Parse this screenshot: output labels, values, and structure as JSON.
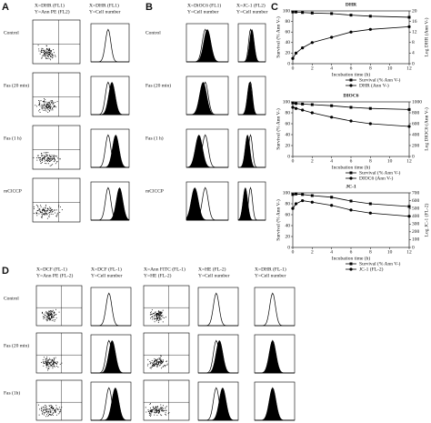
{
  "figure": {
    "A": {
      "label": "A",
      "headers": [
        [
          "X=DHR (FL1)",
          "Y=Ann PE (FL2)"
        ],
        [
          "X=DHR (FL1)",
          "Y=Cell number"
        ]
      ],
      "rows": [
        "Control",
        "Fas (20 min)",
        "Fas (1 h)",
        "mClCCP"
      ]
    },
    "B": {
      "label": "B",
      "headers": [
        [
          "X=DiOC6 (FL1)",
          "Y=Cell number"
        ],
        [
          "X=JC-1 (FL2)",
          "Y=Cell number"
        ]
      ],
      "rows": [
        "Control",
        "Fas (20 min)",
        "Fas (1 h)",
        "mClCCP"
      ]
    },
    "C": {
      "label": "C"
    },
    "D": {
      "label": "D",
      "headers": [
        [
          "X=DCF (FL-1)",
          "Y=Ann PE (FL-2)"
        ],
        [
          "X=DCF (FL-1)",
          "Y=Cell number"
        ],
        [
          "X=Ann FITC (FL-1)",
          "Y=HE (FL-2)"
        ],
        [
          "X=HE (FL-2)",
          "Y=Cell number"
        ],
        [
          "X=DHR (FL-1)",
          "Y=Cell number"
        ]
      ],
      "rows": [
        "Control",
        "Fas (20 min)",
        "Fas (1h)"
      ]
    }
  },
  "chart_data": [
    {
      "type": "line",
      "title": "DHR",
      "xlabel": "Incubation time (h)",
      "ylabel": "Survival (% Ann V-)",
      "y2label": "Log DHR (Ann V-)",
      "x": [
        0,
        0.33,
        1,
        2,
        4,
        6,
        8,
        12
      ],
      "xlim": [
        0,
        12
      ],
      "xticks": [
        0,
        2,
        4,
        6,
        8,
        10,
        12
      ],
      "ylim": [
        0,
        100
      ],
      "yticks": [
        0,
        20,
        40,
        60,
        80,
        100
      ],
      "y2lim": [
        0,
        20
      ],
      "y2ticks": [
        0,
        4,
        8,
        12,
        16,
        20
      ],
      "series": [
        {
          "name": "Survival (% Ann V-)",
          "color": "#000000",
          "values": [
            98,
            98,
            97,
            96,
            95,
            92,
            90,
            88
          ]
        },
        {
          "name": "DHR (Ann V-)",
          "color": "#000000",
          "values": [
            2,
            4,
            6,
            8,
            10,
            12,
            13,
            14
          ],
          "axis": "y2"
        }
      ]
    },
    {
      "type": "line",
      "title": "DIOC6",
      "xlabel": "Incubation time (h)",
      "ylabel": "Survival (% Ann V-)",
      "y2label": "Log DIOC6 (Ann V-)",
      "x": [
        0,
        0.33,
        1,
        2,
        4,
        6,
        8,
        12
      ],
      "xlim": [
        0,
        12
      ],
      "xticks": [
        0,
        2,
        4,
        6,
        8,
        10,
        12
      ],
      "ylim": [
        0,
        100
      ],
      "yticks": [
        0,
        20,
        40,
        60,
        80,
        100
      ],
      "y2lim": [
        0,
        1000
      ],
      "y2ticks": [
        0,
        200,
        400,
        600,
        800,
        1000
      ],
      "series": [
        {
          "name": "Survival (% Ann V-)",
          "color": "#000000",
          "values": [
            98,
            97,
            96,
            95,
            93,
            90,
            88,
            86
          ]
        },
        {
          "name": "DIOC6 (Ann V-)",
          "color": "#000000",
          "values": [
            900,
            880,
            850,
            800,
            720,
            650,
            600,
            550
          ],
          "axis": "y2"
        }
      ]
    },
    {
      "type": "line",
      "title": "JC-1",
      "xlabel": "Incubation time (h)",
      "ylabel": "Survival (% Ann V-)",
      "y2label": "Log JC-1 (FL-2)",
      "x": [
        0,
        0.33,
        1,
        2,
        4,
        6,
        8,
        12
      ],
      "xlim": [
        0,
        12
      ],
      "xticks": [
        0,
        2,
        4,
        6,
        8,
        10,
        12
      ],
      "ylim": [
        0,
        100
      ],
      "yticks": [
        0,
        20,
        40,
        60,
        80,
        100
      ],
      "y2lim": [
        0,
        700
      ],
      "y2ticks": [
        0,
        100,
        200,
        300,
        400,
        500,
        600,
        700
      ],
      "series": [
        {
          "name": "Survival (% Ann V-)",
          "color": "#000000",
          "values": [
            97,
            98,
            97,
            95,
            92,
            85,
            80,
            75
          ]
        },
        {
          "name": "JC-1 (FL-2)",
          "color": "#000000",
          "values": [
            500,
            560,
            600,
            580,
            540,
            480,
            440,
            400
          ],
          "axis": "y2"
        }
      ]
    }
  ]
}
